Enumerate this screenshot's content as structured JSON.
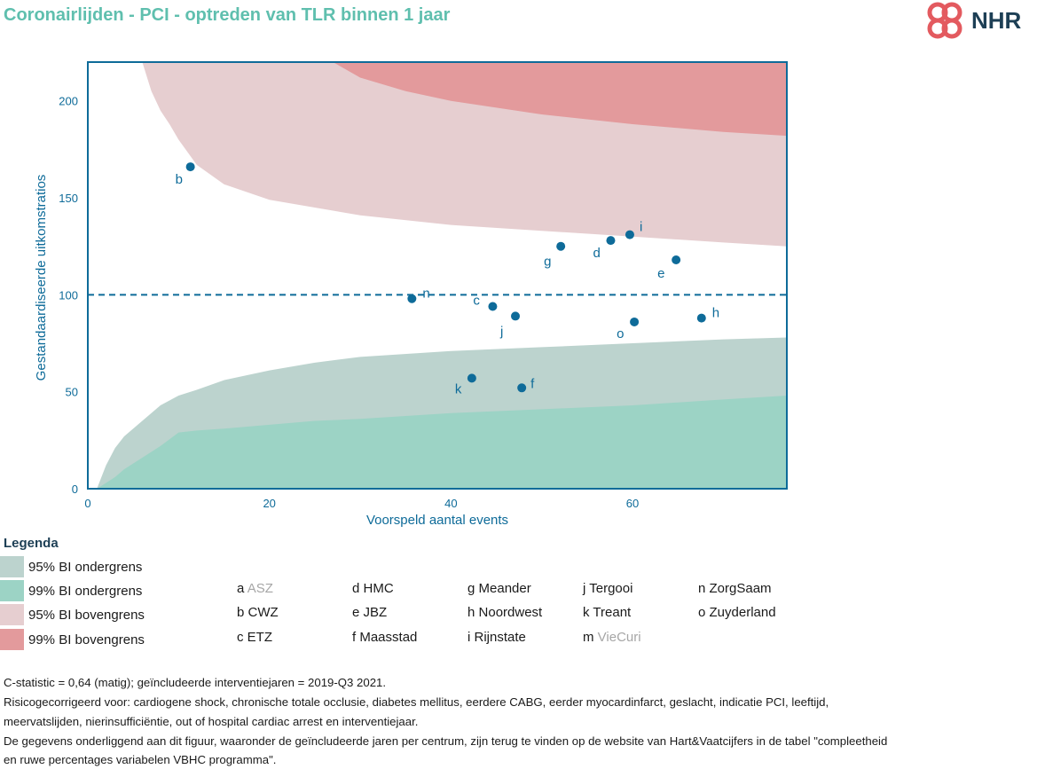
{
  "title": "Coronairlijden - PCI - optreden van TLR binnen 1 jaar",
  "logo": {
    "text": "NHR"
  },
  "colors": {
    "lower95": "#bcd3ce",
    "lower99": "#9cd3c5",
    "upper95": "#e6ced0",
    "upper99": "#e39a9c",
    "accent": "#0e6b99",
    "title": "#5fbfae"
  },
  "chart_data": {
    "type": "scatter",
    "xlabel": "Voorspeld aantal events",
    "ylabel": "Gestandaardiseerde uitkomstratios",
    "xlim": [
      0,
      77
    ],
    "ylim": [
      0,
      220
    ],
    "xticks": [
      0,
      20,
      40,
      60
    ],
    "yticks": [
      0,
      50,
      100,
      150,
      200
    ],
    "reference_line": 100,
    "grid": false,
    "points": [
      {
        "label": "b",
        "x": 11.3,
        "y": 166
      },
      {
        "label": "i",
        "x": 59.7,
        "y": 131
      },
      {
        "label": "d",
        "x": 57.6,
        "y": 128
      },
      {
        "label": "g",
        "x": 52.1,
        "y": 125
      },
      {
        "label": "e",
        "x": 64.8,
        "y": 118
      },
      {
        "label": "n",
        "x": 35.7,
        "y": 98
      },
      {
        "label": "c",
        "x": 44.6,
        "y": 94
      },
      {
        "label": "j",
        "x": 47.1,
        "y": 89
      },
      {
        "label": "h",
        "x": 67.6,
        "y": 88
      },
      {
        "label": "o",
        "x": 60.2,
        "y": 86
      },
      {
        "label": "k",
        "x": 42.3,
        "y": 57
      },
      {
        "label": "f",
        "x": 47.8,
        "y": 52
      }
    ],
    "bands": {
      "x": [
        1,
        2,
        3,
        4,
        6,
        8,
        10,
        12,
        15,
        20,
        25,
        30,
        40,
        50,
        60,
        70,
        77
      ],
      "lower99": [
        0,
        3,
        6,
        10,
        16,
        22,
        29,
        30,
        31,
        33,
        35,
        36,
        39,
        41,
        43,
        46,
        48
      ],
      "lower95": [
        0,
        12,
        21,
        27,
        35,
        43,
        48,
        51,
        56,
        61,
        65,
        68,
        71,
        73,
        75,
        77,
        78
      ],
      "upper95_x": [
        6,
        7,
        8,
        9,
        10,
        12,
        15,
        20,
        25,
        30,
        40,
        50,
        60,
        70,
        77
      ],
      "upper95": [
        220,
        205,
        195,
        188,
        180,
        167,
        157,
        149,
        145,
        141,
        136,
        133,
        130,
        127,
        125
      ],
      "upper99_x": [
        27,
        30,
        35,
        40,
        50,
        60,
        70,
        77
      ],
      "upper99": [
        220,
        212,
        205,
        200,
        193,
        188,
        184,
        182
      ]
    }
  },
  "legend": {
    "title": "Legenda",
    "items": [
      {
        "label": "95% BI ondergrens",
        "color": "#bcd3ce"
      },
      {
        "label": "99% BI ondergrens",
        "color": "#9cd3c5"
      },
      {
        "label": "95% BI bovengrens",
        "color": "#e6ced0"
      },
      {
        "label": "99% BI bovengrens",
        "color": "#e39a9c"
      }
    ]
  },
  "centers": [
    [
      {
        "code": "a",
        "name": "ASZ",
        "excluded": true
      },
      {
        "code": "b",
        "name": "CWZ",
        "excluded": false
      },
      {
        "code": "c",
        "name": "ETZ",
        "excluded": false
      }
    ],
    [
      {
        "code": "d",
        "name": "HMC",
        "excluded": false
      },
      {
        "code": "e",
        "name": "JBZ",
        "excluded": false
      },
      {
        "code": "f",
        "name": "Maasstad",
        "excluded": false
      }
    ],
    [
      {
        "code": "g",
        "name": "Meander",
        "excluded": false
      },
      {
        "code": "h",
        "name": "Noordwest",
        "excluded": false
      },
      {
        "code": "i",
        "name": "Rijnstate",
        "excluded": false
      }
    ],
    [
      {
        "code": "j",
        "name": "Tergooi",
        "excluded": false
      },
      {
        "code": "k",
        "name": "Treant",
        "excluded": false
      },
      {
        "code": "m",
        "name": "VieCuri",
        "excluded": true
      }
    ],
    [
      {
        "code": "n",
        "name": "ZorgSaam",
        "excluded": false
      },
      {
        "code": "o",
        "name": "Zuyderland",
        "excluded": false
      }
    ]
  ],
  "footnotes": {
    "line1": "C-statistic = 0,64 (matig); geïncludeerde interventiejaren = 2019-Q3 2021.",
    "line2": "Risicogecorrigeerd voor: cardiogene shock, chronische totale occlusie, diabetes mellitus, eerdere CABG, eerder myocardinfarct, geslacht, indicatie PCI, leeftijd,",
    "line3": "meervatslijden, nierinsufficiëntie, out of hospital cardiac arrest en interventiejaar.",
    "line4": "De gegevens onderliggend aan dit figuur, waaronder de geïncludeerde jaren per centrum, zijn terug te vinden op de website van Hart&Vaatcijfers in de tabel \"compleetheid",
    "line5": "en ruwe percentages variabelen VBHC programma\"."
  }
}
